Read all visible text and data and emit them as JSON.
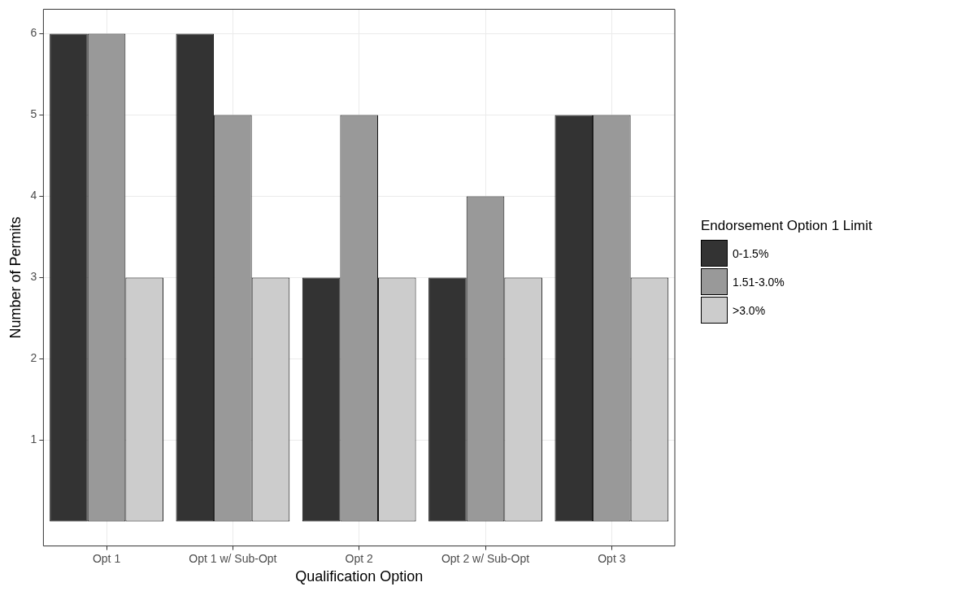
{
  "chart_data": {
    "type": "bar",
    "xlabel": "Qualification Option",
    "ylabel": "Number of Permits",
    "legend_title": "Endorsement Option 1 Limit",
    "categories": [
      "Opt 1",
      "Opt 1 w/ Sub-Opt",
      "Opt 2",
      "Opt 2 w/ Sub-Opt",
      "Opt 3"
    ],
    "series": [
      {
        "name": "0-1.5%",
        "color": "#333333",
        "values": [
          6,
          6,
          3,
          3,
          5
        ]
      },
      {
        "name": "1.51-3.0%",
        "color": "#999999",
        "values": [
          6,
          5,
          5,
          4,
          5
        ]
      },
      {
        "name": ">3.0%",
        "color": "#cccccc",
        "values": [
          3,
          3,
          3,
          3,
          3
        ]
      }
    ],
    "ylim": [
      -0.3,
      6.3
    ],
    "yticks": [
      1,
      2,
      3,
      4,
      5,
      6
    ],
    "grid": true,
    "legend": "right"
  }
}
